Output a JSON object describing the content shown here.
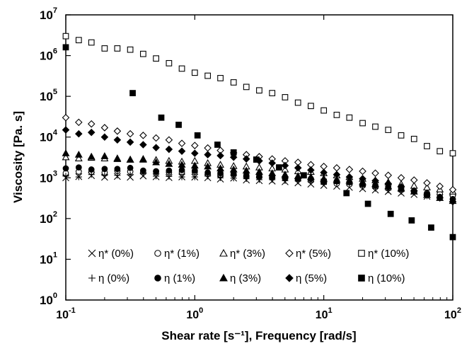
{
  "chart_data": {
    "type": "scatter",
    "title": "",
    "xlabel": "Shear rate [s⁻¹], Frequency [rad/s]",
    "ylabel": "Viscosity [Pa. s]",
    "xscale": "log",
    "yscale": "log",
    "xlim": [
      0.1,
      100
    ],
    "ylim": [
      1,
      10000000
    ],
    "x_ticks": [
      {
        "value": 0.1,
        "base": "10",
        "exp": "-1"
      },
      {
        "value": 1,
        "base": "10",
        "exp": "0"
      },
      {
        "value": 10,
        "base": "10",
        "exp": "1"
      },
      {
        "value": 100,
        "base": "10",
        "exp": "2"
      }
    ],
    "y_ticks": [
      {
        "value": 1,
        "base": "10",
        "exp": "0"
      },
      {
        "value": 10,
        "base": "10",
        "exp": "1"
      },
      {
        "value": 100,
        "base": "10",
        "exp": "2"
      },
      {
        "value": 1000,
        "base": "10",
        "exp": "3"
      },
      {
        "value": 10000,
        "base": "10",
        "exp": "4"
      },
      {
        "value": 100000,
        "base": "10",
        "exp": "5"
      },
      {
        "value": 1000000,
        "base": "10",
        "exp": "6"
      },
      {
        "value": 10000000,
        "base": "10",
        "exp": "7"
      }
    ],
    "grid": false,
    "legend_position": "bottom-inside",
    "series": [
      {
        "name": "η* (0%)",
        "marker": "x",
        "x": [
          0.1,
          0.126,
          0.158,
          0.2,
          0.251,
          0.316,
          0.398,
          0.501,
          0.631,
          0.794,
          1,
          1.26,
          1.58,
          2,
          2.51,
          3.16,
          3.98,
          5.01,
          6.31,
          7.94,
          10,
          12.6,
          15.8,
          20,
          25.1,
          31.6,
          39.8,
          50.1,
          63.1,
          79.4,
          100
        ],
        "y": [
          1000,
          1070,
          1130,
          1030,
          1080,
          1030,
          1110,
          1060,
          1010,
          1050,
          1040,
          1000,
          930,
          980,
          880,
          850,
          830,
          800,
          750,
          700,
          650,
          620,
          580,
          540,
          500,
          460,
          420,
          390,
          350,
          330,
          310
        ]
      },
      {
        "name": "η* (1%)",
        "marker": "circle-open",
        "x": [
          0.1,
          0.126,
          0.158,
          0.2,
          0.251,
          0.316,
          0.398,
          0.501,
          0.631,
          0.794,
          1,
          1.26,
          1.58,
          2,
          2.51,
          3.16,
          3.98,
          5.01,
          6.31,
          7.94,
          10,
          12.6,
          15.8,
          20,
          25.1,
          31.6,
          39.8,
          50.1,
          63.1,
          79.4,
          100
        ],
        "y": [
          1300,
          1420,
          1400,
          1350,
          1480,
          1420,
          1350,
          1400,
          1360,
          1380,
          1400,
          1250,
          1200,
          1180,
          1100,
          1050,
          1000,
          960,
          900,
          850,
          780,
          720,
          690,
          640,
          590,
          550,
          500,
          460,
          420,
          400,
          370
        ]
      },
      {
        "name": "η* (3%)",
        "marker": "triangle-open",
        "x": [
          0.1,
          0.126,
          0.158,
          0.2,
          0.251,
          0.316,
          0.398,
          0.501,
          0.631,
          0.794,
          1,
          1.26,
          1.58,
          2,
          2.51,
          3.16,
          3.98,
          5.01,
          6.31,
          7.94,
          10,
          12.6,
          15.8,
          20,
          25.1,
          31.6,
          39.8,
          50.1,
          63.1,
          79.4,
          100
        ],
        "y": [
          3200,
          3000,
          3100,
          3000,
          2900,
          2800,
          2800,
          2750,
          2600,
          2500,
          2600,
          2300,
          2100,
          1950,
          1900,
          1800,
          1700,
          1600,
          1450,
          1400,
          1300,
          1150,
          1050,
          950,
          870,
          780,
          700,
          640,
          580,
          520,
          460
        ]
      },
      {
        "name": "η* (5%)",
        "marker": "diamond-open",
        "x": [
          0.1,
          0.126,
          0.158,
          0.2,
          0.251,
          0.316,
          0.398,
          0.501,
          0.631,
          0.794,
          1,
          1.26,
          1.58,
          2,
          2.51,
          3.16,
          3.98,
          5.01,
          6.31,
          7.94,
          10,
          12.6,
          15.8,
          20,
          25.1,
          31.6,
          39.8,
          50.1,
          63.1,
          79.4,
          100
        ],
        "y": [
          30000,
          23000,
          21000,
          17000,
          14000,
          12000,
          11000,
          9500,
          8500,
          7000,
          6200,
          5400,
          4700,
          4100,
          3700,
          3300,
          2900,
          2600,
          2400,
          2100,
          1900,
          1750,
          1600,
          1450,
          1300,
          1150,
          1000,
          880,
          750,
          620,
          510
        ]
      },
      {
        "name": "η* (10%)",
        "marker": "square-open",
        "x": [
          0.1,
          0.126,
          0.158,
          0.2,
          0.251,
          0.316,
          0.398,
          0.501,
          0.631,
          0.794,
          1,
          1.26,
          1.58,
          2,
          2.51,
          3.16,
          3.98,
          5.01,
          6.31,
          7.94,
          10,
          12.6,
          15.8,
          20,
          25.1,
          31.6,
          39.8,
          50.1,
          63.1,
          79.4,
          100
        ],
        "y": [
          3000000,
          2400000,
          2100000,
          1500000,
          1500000,
          1400000,
          1100000,
          850000,
          650000,
          480000,
          380000,
          320000,
          280000,
          220000,
          170000,
          140000,
          120000,
          95000,
          70000,
          58000,
          45000,
          35000,
          30000,
          22000,
          18000,
          15000,
          11000,
          9000,
          6000,
          4500,
          4000
        ]
      },
      {
        "name": "η (0%)",
        "marker": "plus",
        "x": [
          0.1,
          0.126,
          0.158,
          0.2,
          0.251,
          0.316,
          0.398,
          0.501,
          0.631,
          0.794,
          1,
          1.26,
          1.58,
          2,
          2.51,
          3.16,
          3.98,
          5.01,
          6.31,
          7.94,
          10,
          12.6,
          15.8,
          20,
          25.1,
          31.6,
          39.8,
          50.1,
          63.1,
          79.4,
          100
        ],
        "y": [
          1100,
          1050,
          1200,
          1150,
          1150,
          1180,
          1250,
          1100,
          1080,
          1050,
          1050,
          1100,
          1000,
          980,
          950,
          900,
          900,
          850,
          830,
          790,
          750,
          720,
          680,
          600,
          550,
          500,
          460,
          440,
          360,
          340,
          300
        ]
      },
      {
        "name": "η (1%)",
        "marker": "circle-filled",
        "x": [
          0.1,
          0.126,
          0.158,
          0.2,
          0.251,
          0.316,
          0.398,
          0.501,
          0.631,
          0.794,
          1,
          1.26,
          1.58,
          2,
          2.51,
          3.16,
          3.98,
          5.01,
          6.31,
          7.94,
          10,
          12.6,
          15.8,
          20,
          25.1,
          31.6,
          39.8,
          50.1,
          63.1,
          79.4,
          100
        ],
        "y": [
          1700,
          1800,
          1600,
          1650,
          1650,
          1750,
          1500,
          1450,
          1500,
          1550,
          1500,
          1350,
          1300,
          1250,
          1150,
          1100,
          1050,
          1000,
          950,
          950,
          850,
          820,
          780,
          700,
          650,
          600,
          550,
          480,
          400,
          340,
          300
        ]
      },
      {
        "name": "η (3%)",
        "marker": "triangle-filled",
        "x": [
          0.1,
          0.126,
          0.158,
          0.2,
          0.251,
          0.316,
          0.398,
          0.501,
          0.631,
          0.794,
          1,
          1.26,
          1.58,
          2,
          2.51,
          3.16,
          3.98,
          5.01,
          6.31,
          7.94,
          10,
          12.6,
          15.8,
          20,
          25.1,
          31.6,
          39.8,
          50.1,
          63.1,
          79.4,
          100
        ],
        "y": [
          4000,
          3700,
          3300,
          3400,
          3000,
          2800,
          2900,
          2400,
          2200,
          2100,
          2000,
          1900,
          1700,
          1600,
          1500,
          1400,
          1300,
          1200,
          1100,
          1050,
          950,
          900,
          850,
          780,
          700,
          620,
          550,
          460,
          380,
          320,
          270
        ]
      },
      {
        "name": "η (5%)",
        "marker": "diamond-filled",
        "x": [
          0.1,
          0.126,
          0.158,
          0.2,
          0.251,
          0.316,
          0.398,
          0.501,
          0.631,
          0.794,
          1,
          1.26,
          1.58,
          2,
          2.51,
          3.16,
          3.98,
          5.01,
          6.31,
          7.94,
          10,
          12.6,
          15.8,
          20,
          25.1,
          31.6,
          39.8,
          50.1,
          63.1,
          79.4,
          100
        ],
        "y": [
          15000,
          12000,
          13000,
          10000,
          8500,
          7500,
          6500,
          5500,
          5000,
          4500,
          4000,
          3700,
          3500,
          3200,
          2900,
          2600,
          2300,
          2000,
          1750,
          1550,
          1350,
          1200,
          1050,
          950,
          850,
          720,
          600,
          480,
          380,
          320,
          260
        ]
      },
      {
        "name": "η (10%)",
        "marker": "square-filled",
        "x": [
          0.1,
          0.33,
          0.55,
          0.75,
          1.05,
          1.5,
          2,
          3,
          4.5,
          7,
          10,
          15,
          22,
          33,
          48,
          68,
          100
        ],
        "y": [
          1600000,
          120000,
          30000,
          20000,
          11000,
          6500,
          4200,
          2800,
          1800,
          1150,
          800,
          420,
          230,
          130,
          90,
          60,
          35
        ]
      }
    ],
    "legend_rows": [
      [
        "η* (0%)",
        "η* (1%)",
        "η* (3%)",
        "η* (5%)",
        "η* (10%)"
      ],
      [
        "η (0%)",
        "η (1%)",
        "η (3%)",
        "η (5%)",
        "η (10%)"
      ]
    ]
  }
}
